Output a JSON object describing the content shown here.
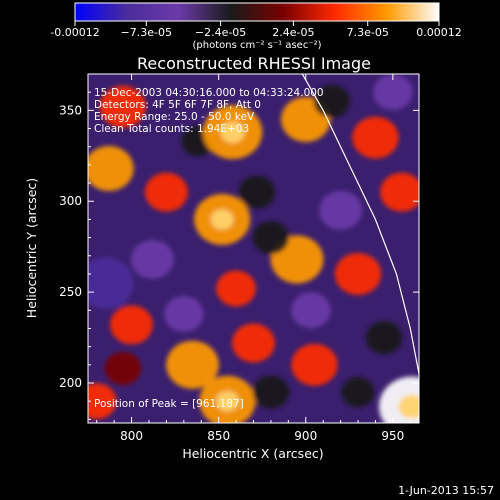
{
  "chart_data": {
    "type": "heatmap",
    "title": "Reconstructed RHESSI Image",
    "xlabel": "Heliocentric X (arcsec)",
    "ylabel": "Heliocentric Y (arcsec)",
    "xlim": [
      775,
      965
    ],
    "ylim": [
      178,
      370
    ],
    "x_ticks": [
      800,
      850,
      900,
      950
    ],
    "y_ticks": [
      200,
      250,
      300,
      350
    ],
    "x_tick_labels": [
      "800",
      "850",
      "900",
      "950"
    ],
    "y_tick_labels": [
      "200",
      "250",
      "300",
      "350"
    ],
    "colorbar": {
      "range": [
        -0.00012,
        0.00012
      ],
      "tick_labels": [
        "-0.00012",
        "−7.3e-05",
        "−2.4e-05",
        "2.4e-05",
        "7.3e-05",
        "0.00012"
      ],
      "tick_values": [
        -0.00012,
        -7.3e-05,
        -2.4e-05,
        2.4e-05,
        7.3e-05,
        0.00012
      ],
      "unit_label": "(photons cm⁻² s⁻¹ asec⁻²)",
      "colors": [
        "#0000ff",
        "#4b2c9b",
        "#6a3aa8",
        "#1a1a1a",
        "#7a0000",
        "#ff2a00",
        "#ff9a00",
        "#ffffff"
      ]
    },
    "annotations": [
      "15-Dec-2003 04:30:16.000 to 04:33:24.000",
      "Detectors: 4F 5F 6F 7F 8F, Att 0",
      "Energy Range: 25.0 - 50.0 keV",
      "Clean     Total counts: 1.94E+03"
    ],
    "peak_label": "Position of Peak = [961,187]",
    "peak": [
      961,
      187
    ],
    "limb": [
      [
        898,
        370
      ],
      [
        910,
        350
      ],
      [
        925,
        320
      ],
      [
        940,
        290
      ],
      [
        952,
        260
      ],
      [
        960,
        230
      ],
      [
        965,
        205
      ],
      [
        967,
        178
      ]
    ],
    "blobs": [
      {
        "x": 787,
        "y": 318,
        "value": 7e-05
      },
      {
        "x": 795,
        "y": 352,
        "value": 6e-05
      },
      {
        "x": 820,
        "y": 305,
        "value": 5e-05
      },
      {
        "x": 838,
        "y": 333,
        "value": -2e-05
      },
      {
        "x": 858,
        "y": 338,
        "value": 0.0001
      },
      {
        "x": 852,
        "y": 290,
        "value": 9e-05
      },
      {
        "x": 860,
        "y": 252,
        "value": 4e-05
      },
      {
        "x": 872,
        "y": 305,
        "value": -3e-05
      },
      {
        "x": 900,
        "y": 345,
        "value": 7e-05
      },
      {
        "x": 895,
        "y": 268,
        "value": 8e-05
      },
      {
        "x": 930,
        "y": 260,
        "value": 6e-05
      },
      {
        "x": 940,
        "y": 335,
        "value": 6e-05
      },
      {
        "x": 955,
        "y": 305,
        "value": 5e-05
      },
      {
        "x": 903,
        "y": 240,
        "value": -4e-05
      },
      {
        "x": 785,
        "y": 255,
        "value": -9e-05
      },
      {
        "x": 800,
        "y": 232,
        "value": 5e-05
      },
      {
        "x": 830,
        "y": 238,
        "value": -4e-05
      },
      {
        "x": 795,
        "y": 208,
        "value": 3e-05
      },
      {
        "x": 835,
        "y": 210,
        "value": 8e-05
      },
      {
        "x": 855,
        "y": 190,
        "value": 9e-05
      },
      {
        "x": 870,
        "y": 222,
        "value": 5e-05
      },
      {
        "x": 905,
        "y": 210,
        "value": 6e-05
      },
      {
        "x": 930,
        "y": 195,
        "value": -2e-05
      },
      {
        "x": 945,
        "y": 225,
        "value": -3e-05
      },
      {
        "x": 961,
        "y": 187,
        "value": 0.00012
      },
      {
        "x": 812,
        "y": 268,
        "value": -5e-05
      },
      {
        "x": 880,
        "y": 280,
        "value": -3e-05
      },
      {
        "x": 920,
        "y": 295,
        "value": -5e-05
      },
      {
        "x": 950,
        "y": 360,
        "value": -4e-05
      },
      {
        "x": 780,
        "y": 190,
        "value": 4e-05
      },
      {
        "x": 880,
        "y": 195,
        "value": -3e-05
      },
      {
        "x": 915,
        "y": 355,
        "value": -3e-05
      }
    ]
  },
  "footer": {
    "date": "1-Jun-2013 15:57"
  }
}
